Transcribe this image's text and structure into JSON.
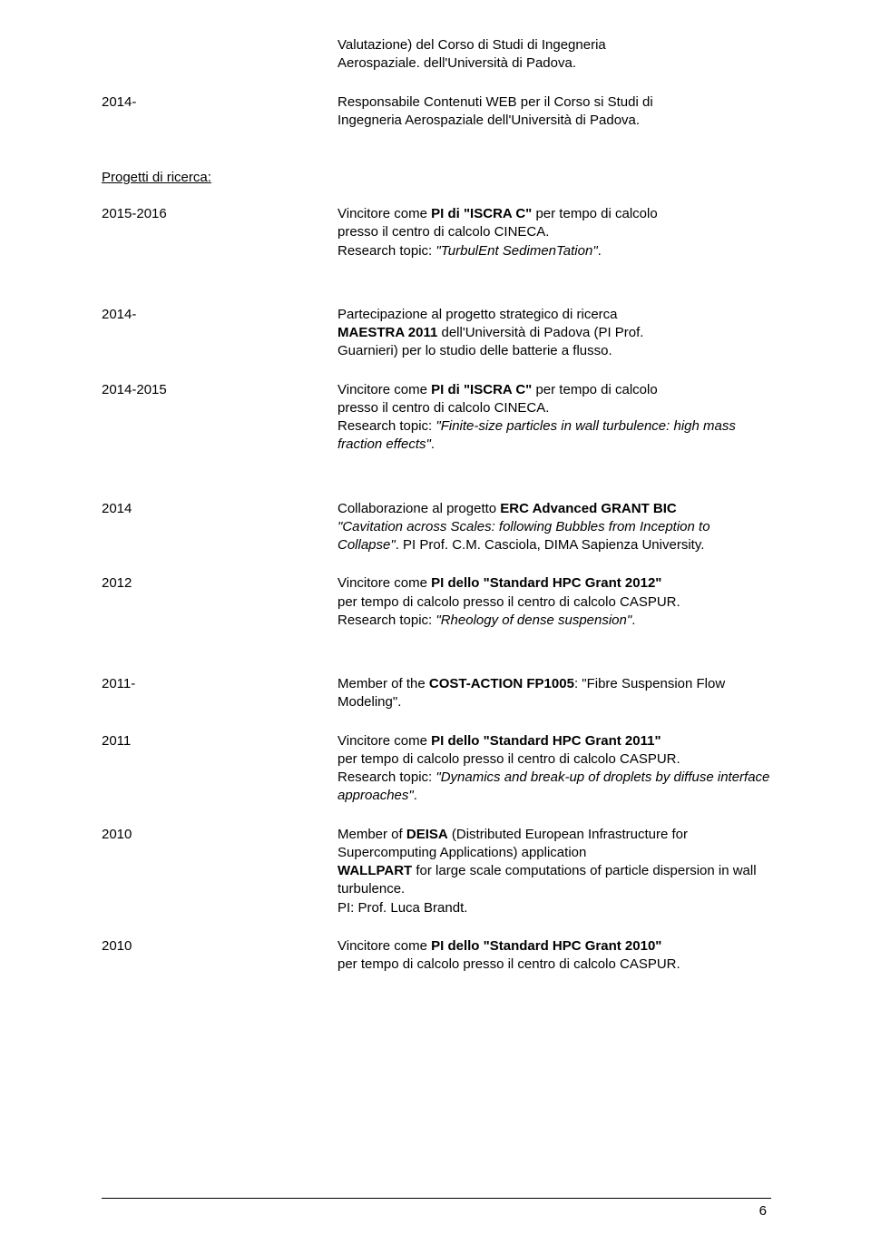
{
  "topblock": {
    "cont_line1": "Valutazione) del Corso di Studi di Ingegneria",
    "cont_line2": "Aerospaziale. dell'Università di Padova.",
    "year": "2014-",
    "desc_line1": "Responsabile Contenuti WEB per il Corso si Studi di",
    "desc_line2": "Ingegneria Aerospaziale dell'Università di Padova."
  },
  "section": "Progetti di ricerca:",
  "entries": [
    {
      "year": "2015-2016",
      "lines": [
        {
          "pre": "Vincitore come ",
          "bold": "PI di \"ISCRA C\"",
          "post": " per tempo di calcolo"
        },
        {
          "text": "presso il centro di calcolo CINECA."
        },
        {
          "pre": "Research topic: ",
          "italic": "\"TurbulEnt SedimenTation\"",
          "post": "."
        }
      ]
    },
    {
      "year": "2014-",
      "lines": [
        {
          "text": "Partecipazione al progetto strategico di ricerca"
        },
        {
          "pre": "",
          "bold": "MAESTRA 2011",
          "post": " dell'Università di Padova (PI Prof."
        },
        {
          "text": "Guarnieri) per lo studio delle batterie a flusso."
        }
      ]
    },
    {
      "year": "2014-2015",
      "lines": [
        {
          "pre": "Vincitore come ",
          "bold": "PI di \"ISCRA C\"",
          "post": " per tempo di calcolo"
        },
        {
          "text": "presso il centro di calcolo CINECA."
        },
        {
          "pre": "Research topic: ",
          "italic": "\"Finite-size particles in wall turbulence: high mass fraction effects\"",
          "post": "."
        }
      ]
    },
    {
      "year": "2014",
      "lines": [
        {
          "pre": "Collaborazione al progetto ",
          "bold": "ERC Advanced GRANT BIC",
          "post": ""
        },
        {
          "italic": "\"Cavitation across Scales: following Bubbles from Inception to Collapse\"",
          "post": ". PI Prof. C.M. Casciola, DIMA Sapienza University."
        }
      ]
    },
    {
      "year": "2012",
      "lines": [
        {
          "pre": "Vincitore come ",
          "bold": "PI dello \"Standard HPC Grant 2012\"",
          "post": ""
        },
        {
          "text": "per tempo di calcolo presso il centro di calcolo CASPUR."
        },
        {
          "pre": "Research topic: ",
          "italic": "\"Rheology of dense suspension\"",
          "post": "."
        }
      ]
    },
    {
      "year": "2011-",
      "lines": [
        {
          "pre": "Member of the ",
          "bold": "COST-ACTION FP1005",
          "post": ": \"Fibre Suspension Flow Modeling\"."
        }
      ]
    },
    {
      "year": "2011",
      "lines": [
        {
          "pre": "Vincitore come ",
          "bold": "PI dello \"Standard HPC Grant 2011\"",
          "post": ""
        },
        {
          "text": "per tempo di calcolo presso il centro di calcolo CASPUR."
        },
        {
          "pre": "Research topic: ",
          "italic": "\"Dynamics and break-up of droplets by diffuse interface approaches\"",
          "post": "."
        }
      ]
    },
    {
      "year": "2010",
      "lines": [
        {
          "pre": "Member of ",
          "bold": "DEISA",
          "post": " (Distributed European Infrastructure for Supercomputing Applications) application "
        },
        {
          "bold": "WALLPART",
          "post": " for large scale computations of particle dispersion in wall turbulence."
        },
        {
          "text": "PI: Prof. Luca Brandt."
        }
      ]
    },
    {
      "year": "2010",
      "lines": [
        {
          "pre": "Vincitore come ",
          "bold": "PI dello \"Standard HPC Grant 2010\"",
          "post": ""
        },
        {
          "text": "per tempo di calcolo presso il centro di calcolo CASPUR."
        }
      ]
    }
  ],
  "page_number": "6",
  "gaps_after": [
    0,
    2,
    4
  ]
}
